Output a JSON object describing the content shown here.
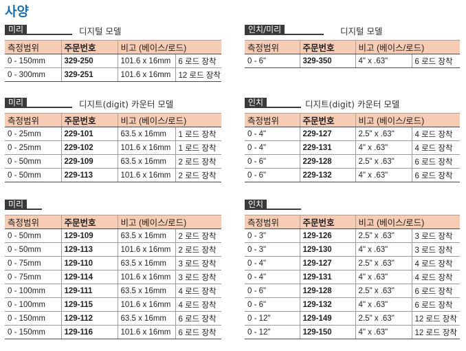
{
  "page_title": "사양",
  "headers": [
    "측정범위",
    "주문번호",
    "비고 (베이스/로드)"
  ],
  "sections": {
    "metric_digital": {
      "tag": "미리",
      "title": "디지털 모델",
      "rows": [
        {
          "range": "0 - 150mm",
          "code": "329-250",
          "base": "101.6 x 16mm",
          "rod": "6 로드 장착"
        },
        {
          "range": "0 - 300mm",
          "code": "329-251",
          "base": "101.6 x 16mm",
          "rod": "12 로드 장착"
        }
      ]
    },
    "inch_metric_digital": {
      "tag": "인치/미리",
      "title": "디지털 모델",
      "rows": [
        {
          "range": "0 - 6\"",
          "code": "329-350",
          "base": "4\" x .63\"",
          "rod": "6 로드 장착"
        }
      ]
    },
    "metric_counter": {
      "tag": "미리",
      "title": "디지트(digit) 카운터 모델",
      "rows": [
        {
          "range": "0 - 25mm",
          "code": "229-101",
          "base": "63.5 x 16mm",
          "rod": "1 로드 장착"
        },
        {
          "range": "0 - 25mm",
          "code": "229-102",
          "base": "101.6 x 16mm",
          "rod": "1 로드 장착"
        },
        {
          "range": "0 - 50mm",
          "code": "229-109",
          "base": "63.5 x 16mm",
          "rod": "2 로드 장착"
        },
        {
          "range": "0 - 50mm",
          "code": "229-113",
          "base": "101.6 x 16mm",
          "rod": "2 로드 장착"
        }
      ]
    },
    "inch_counter": {
      "tag": "인치",
      "title": "디지트(digit) 카운터 모델",
      "rows": [
        {
          "range": "0 - 4\"",
          "code": "229-127",
          "base": "2.5\" x .63\"",
          "rod": "4 로드 장착"
        },
        {
          "range": "0 - 4\"",
          "code": "229-131",
          "base": "4\" x .63\"",
          "rod": "4 로드 장착"
        },
        {
          "range": "0 - 6\"",
          "code": "229-128",
          "base": "2.5\" x .63\"",
          "rod": "6 로드 장착"
        },
        {
          "range": "0 - 6\"",
          "code": "229-132",
          "base": "4\" x .63\"",
          "rod": "6 로드 장착"
        }
      ]
    },
    "metric_dial": {
      "tag": "미리",
      "title": "",
      "rows": [
        {
          "range": "0 - 50mm",
          "code": "129-109",
          "base": "63.5 x 16mm",
          "rod": "2 로드 장착"
        },
        {
          "range": "0 - 50mm",
          "code": "129-113",
          "base": "101.6 x 16mm",
          "rod": "2 로드 장착"
        },
        {
          "range": "0 - 75mm",
          "code": "129-110",
          "base": "63.5 x 16mm",
          "rod": "3 로드 장착"
        },
        {
          "range": "0 - 75mm",
          "code": "129-114",
          "base": "101.6 x 16mm",
          "rod": "3 로드 장착"
        },
        {
          "range": "0 - 100mm",
          "code": "129-111",
          "base": "63.5 x 16mm",
          "rod": "4 로드 장착"
        },
        {
          "range": "0 - 100mm",
          "code": "129-115",
          "base": "101.6 x 16mm",
          "rod": "4 로드 장착"
        },
        {
          "range": "0 - 150mm",
          "code": "129-112",
          "base": "63.5 x 16mm",
          "rod": "6 로드 장착"
        },
        {
          "range": "0 - 150mm",
          "code": "129-116",
          "base": "101.6 x 16mm",
          "rod": "6 로드 장착"
        }
      ]
    },
    "inch_dial": {
      "tag": "인치",
      "title": "",
      "rows": [
        {
          "range": "0 - 3\"",
          "code": "129-126",
          "base": "2.5\" x .63\"",
          "rod": "3 로드 장착"
        },
        {
          "range": "0 - 3\"",
          "code": "129-130",
          "base": "4\" x .63\"",
          "rod": "3 로드 장착"
        },
        {
          "range": "0 - 4\"",
          "code": "129-127",
          "base": "2.5\" x .63\"",
          "rod": "4 로드 장착"
        },
        {
          "range": "0 - 4\"",
          "code": "129-131",
          "base": "4\" x .63\"",
          "rod": "4 로드 장착"
        },
        {
          "range": "0 - 6\"",
          "code": "129-128",
          "base": "2.5\" x .63\"",
          "rod": "6 로드 장착"
        },
        {
          "range": "0 - 6\"",
          "code": "129-132",
          "base": "4\" x .63\"",
          "rod": "6 로드 장착"
        },
        {
          "range": "0 - 12\"",
          "code": "129-149",
          "base": "2.5\" x .63\"",
          "rod": "12 로드 장착"
        },
        {
          "range": "0 - 12\"",
          "code": "129-150",
          "base": "4\" x .63\"",
          "rod": "12 로드 장착"
        }
      ]
    }
  }
}
